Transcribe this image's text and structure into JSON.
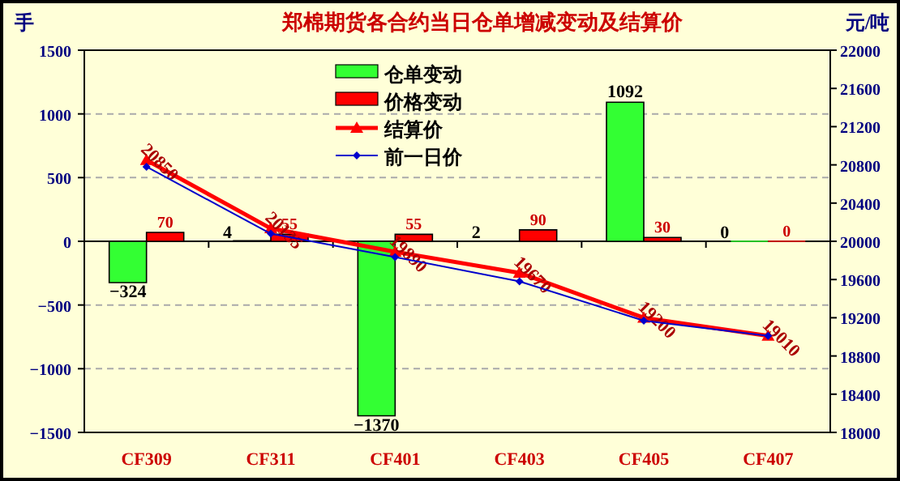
{
  "chart_data": {
    "type": "bar",
    "title": "郑棉期货各合约当日仓单增减变动及结算价",
    "ylabel": "手",
    "y2label": "元/吨",
    "categories": [
      "CF309",
      "CF311",
      "CF401",
      "CF403",
      "CF405",
      "CF407"
    ],
    "series": [
      {
        "name": "仓单变动",
        "color": "#33ff33",
        "values": [
          -324,
          4,
          -1370,
          2,
          1092,
          0
        ],
        "value_labels": [
          "−324",
          "4",
          "−1370",
          "2",
          "1092",
          "0"
        ]
      },
      {
        "name": "价格变动",
        "color": "#ff0000",
        "values": [
          70,
          55,
          55,
          90,
          30,
          0
        ],
        "value_labels": [
          "70",
          "55",
          "55",
          "90",
          "30",
          "0"
        ]
      },
      {
        "name": "结算价",
        "type": "line",
        "axis": "y2",
        "color": "#ff0000",
        "marker": "triangle",
        "values": [
          20850,
          20135,
          19890,
          19670,
          19200,
          19010
        ],
        "value_labels": [
          "20850",
          "20135",
          "19890",
          "19670",
          "19200",
          "19010"
        ]
      },
      {
        "name": "前一日价",
        "type": "line",
        "axis": "y2",
        "color": "#0000cc",
        "marker": "diamond",
        "values": [
          20780,
          20080,
          19835,
          19580,
          19170,
          19010
        ]
      }
    ],
    "ylim": [
      -1500,
      1500
    ],
    "yticks": [
      -1500,
      -1000,
      -500,
      0,
      500,
      1000,
      1500
    ],
    "y2lim": [
      18000,
      22000
    ],
    "y2ticks": [
      18000,
      18400,
      18800,
      19200,
      19600,
      20000,
      20400,
      20800,
      21200,
      21600,
      22000
    ],
    "grid": "y",
    "legend": "top"
  }
}
